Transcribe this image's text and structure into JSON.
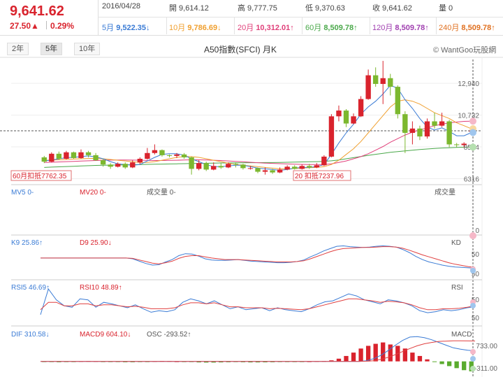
{
  "quote": {
    "last": "9,641.62",
    "change": "27.50▲",
    "change_pct": "0.29%",
    "date": "2016/04/28",
    "open": "開 9,614.12",
    "high": "高 9,777.75",
    "low": "低 9,370.63",
    "close": "收 9,641.62",
    "volume": "量 0"
  },
  "ma_bar": [
    {
      "label": "5月",
      "value": "9,522.35↓",
      "color": "#3a7bd5"
    },
    {
      "label": "10月",
      "value": "9,786.69↓",
      "color": "#f0a030"
    },
    {
      "label": "20月",
      "value": "10,312.01↑",
      "color": "#e0407a"
    },
    {
      "label": "60月",
      "value": "8,509.78↑",
      "color": "#4aa84a"
    },
    {
      "label": "120月",
      "value": "8,509.78↑",
      "color": "#a040b0"
    },
    {
      "label": "240月",
      "value": "8,509.78↑",
      "color": "#e07020"
    }
  ],
  "tabs": [
    "2年",
    "5年",
    "10年"
  ],
  "active_tab": "5年",
  "chart_title": "A50指數(SFCI) 月K",
  "brand": "© WantGoo玩股網",
  "chart_data": {
    "type": "candlestick",
    "y_ticks": [
      "12,940",
      "10,732",
      "8524",
      "6316"
    ],
    "y_tick_values": [
      12940,
      10732,
      8524,
      6316
    ],
    "candles": [
      {
        "o": 7800,
        "c": 7500,
        "h": 7900,
        "l": 7400
      },
      {
        "o": 7500,
        "c": 8050,
        "h": 8150,
        "l": 7450
      },
      {
        "o": 8050,
        "c": 7700,
        "h": 8200,
        "l": 7650
      },
      {
        "o": 7700,
        "c": 8150,
        "h": 8250,
        "l": 7650
      },
      {
        "o": 8150,
        "c": 7750,
        "h": 8200,
        "l": 7700
      },
      {
        "o": 7750,
        "c": 8150,
        "h": 8350,
        "l": 7700
      },
      {
        "o": 8150,
        "c": 7950,
        "h": 8250,
        "l": 7800
      },
      {
        "o": 7950,
        "c": 7600,
        "h": 8100,
        "l": 7550
      },
      {
        "o": 7600,
        "c": 7300,
        "h": 7700,
        "l": 7150
      },
      {
        "o": 7300,
        "c": 7150,
        "h": 7400,
        "l": 7000
      },
      {
        "o": 7150,
        "c": 7350,
        "h": 7450,
        "l": 7100
      },
      {
        "o": 7350,
        "c": 7100,
        "h": 7450,
        "l": 7000
      },
      {
        "o": 7100,
        "c": 7450,
        "h": 7600,
        "l": 7050
      },
      {
        "o": 7450,
        "c": 7700,
        "h": 7800,
        "l": 7300
      },
      {
        "o": 7700,
        "c": 8100,
        "h": 8450,
        "l": 7650
      },
      {
        "o": 8100,
        "c": 8300,
        "h": 8700,
        "l": 8000
      },
      {
        "o": 8300,
        "c": 7950,
        "h": 8350,
        "l": 7850
      },
      {
        "o": 7950,
        "c": 7900,
        "h": 8000,
        "l": 7800
      },
      {
        "o": 7900,
        "c": 8000,
        "h": 8100,
        "l": 7750
      },
      {
        "o": 8000,
        "c": 7800,
        "h": 8100,
        "l": 7700
      },
      {
        "o": 7800,
        "c": 7000,
        "h": 7850,
        "l": 6600
      },
      {
        "o": 7000,
        "c": 7400,
        "h": 7600,
        "l": 6900
      },
      {
        "o": 7400,
        "c": 6950,
        "h": 7500,
        "l": 6850
      },
      {
        "o": 6950,
        "c": 7200,
        "h": 7450,
        "l": 6900
      },
      {
        "o": 7200,
        "c": 7100,
        "h": 7400,
        "l": 7000
      },
      {
        "o": 7100,
        "c": 7350,
        "h": 7450,
        "l": 7050
      },
      {
        "o": 7350,
        "c": 7300,
        "h": 7450,
        "l": 7100
      },
      {
        "o": 7300,
        "c": 7050,
        "h": 7350,
        "l": 6950
      },
      {
        "o": 7050,
        "c": 7050,
        "h": 7200,
        "l": 6950
      },
      {
        "o": 7050,
        "c": 6800,
        "h": 7100,
        "l": 6700
      },
      {
        "o": 6800,
        "c": 6900,
        "h": 7100,
        "l": 6600
      },
      {
        "o": 6900,
        "c": 6750,
        "h": 7000,
        "l": 6650
      },
      {
        "o": 6750,
        "c": 6950,
        "h": 7100,
        "l": 6700
      },
      {
        "o": 6950,
        "c": 7150,
        "h": 7250,
        "l": 6900
      },
      {
        "o": 7150,
        "c": 7000,
        "h": 7250,
        "l": 6950
      },
      {
        "o": 7000,
        "c": 7200,
        "h": 7300,
        "l": 6950
      },
      {
        "o": 7200,
        "c": 7100,
        "h": 7350,
        "l": 7000
      },
      {
        "o": 7100,
        "c": 7250,
        "h": 7400,
        "l": 7050
      },
      {
        "o": 7250,
        "c": 7850,
        "h": 7950,
        "l": 7200
      },
      {
        "o": 7850,
        "c": 10650,
        "h": 10800,
        "l": 7800
      },
      {
        "o": 10650,
        "c": 11050,
        "h": 11400,
        "l": 10300
      },
      {
        "o": 11050,
        "c": 10150,
        "h": 11150,
        "l": 9900
      },
      {
        "o": 10150,
        "c": 10650,
        "h": 10850,
        "l": 10100
      },
      {
        "o": 10650,
        "c": 11850,
        "h": 12050,
        "l": 10600
      },
      {
        "o": 11850,
        "c": 13500,
        "h": 13900,
        "l": 11800
      },
      {
        "o": 13500,
        "c": 12900,
        "h": 14050,
        "l": 12700
      },
      {
        "o": 12900,
        "c": 13300,
        "h": 14500,
        "l": 11500
      },
      {
        "o": 13300,
        "c": 12700,
        "h": 13600,
        "l": 12100
      },
      {
        "o": 12700,
        "c": 10800,
        "h": 12800,
        "l": 10500
      },
      {
        "o": 10800,
        "c": 9500,
        "h": 11000,
        "l": 8100
      },
      {
        "o": 9500,
        "c": 9800,
        "h": 10300,
        "l": 8700
      },
      {
        "o": 9800,
        "c": 9250,
        "h": 10000,
        "l": 9000
      },
      {
        "o": 9250,
        "c": 10300,
        "h": 10500,
        "l": 9100
      },
      {
        "o": 10300,
        "c": 10000,
        "h": 10900,
        "l": 9800
      },
      {
        "o": 10000,
        "c": 10300,
        "h": 10900,
        "l": 9900
      },
      {
        "o": 10300,
        "c": 8700,
        "h": 10400,
        "l": 8500
      },
      {
        "o": 8700,
        "c": 8650,
        "h": 8800,
        "l": 8500
      },
      {
        "o": 8650,
        "c": 8750,
        "h": 8850,
        "l": 8500
      },
      {
        "o": 9614,
        "c": 9642,
        "h": 9778,
        "l": 9371
      }
    ],
    "ma5": [
      7550,
      7620,
      7700,
      7780,
      7800,
      7850,
      7900,
      7830,
      7700,
      7500,
      7350,
      7300,
      7250,
      7300,
      7550,
      7800,
      8000,
      8050,
      8050,
      7950,
      7700,
      7500,
      7300,
      7150,
      7150,
      7200,
      7250,
      7250,
      7150,
      7050,
      7000,
      6950,
      6900,
      6950,
      7050,
      7100,
      7100,
      7150,
      7300,
      8000,
      8800,
      9500,
      10100,
      10800,
      11300,
      11700,
      12200,
      12800,
      12600,
      11800,
      11200,
      10500,
      9900,
      9700,
      9850,
      9600,
      9300,
      9300,
      9522
    ],
    "ma10": [
      7600,
      7610,
      7630,
      7650,
      7680,
      7700,
      7720,
      7730,
      7700,
      7650,
      7600,
      7550,
      7500,
      7450,
      7450,
      7500,
      7600,
      7700,
      7800,
      7850,
      7850,
      7800,
      7700,
      7600,
      7500,
      7400,
      7300,
      7250,
      7200,
      7150,
      7100,
      7050,
      7000,
      7000,
      7020,
      7050,
      7080,
      7100,
      7150,
      7300,
      7600,
      8000,
      8400,
      8900,
      9500,
      10100,
      10700,
      11300,
      11700,
      11800,
      11700,
      11500,
      11200,
      10900,
      10700,
      10500,
      10200,
      10000,
      9787
    ],
    "ma20": [
      7450,
      7460,
      7480,
      7500,
      7520,
      7540,
      7560,
      7580,
      7600,
      7610,
      7620,
      7620,
      7610,
      7600,
      7590,
      7580,
      7580,
      7590,
      7600,
      7620,
      7630,
      7630,
      7620,
      7600,
      7580,
      7550,
      7520,
      7490,
      7460,
      7430,
      7400,
      7380,
      7360,
      7340,
      7320,
      7310,
      7300,
      7300,
      7300,
      7350,
      7450,
      7550,
      7700,
      7850,
      8050,
      8300,
      8550,
      8850,
      9100,
      9350,
      9550,
      9700,
      9850,
      10000,
      10100,
      10200,
      10250,
      10300,
      10312
    ],
    "ma60": [
      7100,
      7120,
      7140,
      7160,
      7180,
      7200,
      7220,
      7240,
      7250,
      7260,
      7270,
      7280,
      7290,
      7300,
      7310,
      7320,
      7330,
      7340,
      7350,
      7360,
      7370,
      7380,
      7390,
      7400,
      7410,
      7410,
      7420,
      7420,
      7430,
      7430,
      7440,
      7440,
      7450,
      7460,
      7470,
      7480,
      7490,
      7500,
      7520,
      7560,
      7620,
      7700,
      7780,
      7860,
      7940,
      8010,
      8080,
      8150,
      8200,
      8250,
      8300,
      8340,
      8380,
      8420,
      8450,
      8470,
      8490,
      8500,
      8510
    ],
    "anno_left": "60月扣抵7762.35",
    "anno_mid_prefix": "20",
    "anno_mid_suffix": "扣抵7237.96",
    "vol_labels": {
      "mv5": "MV5 0-",
      "mv20": "MV20 0-",
      "vol": "成交量 0-",
      "vol_right": "成交量"
    },
    "kd": {
      "labels": {
        "k": "K9 25.86↑",
        "d": "D9 25.90↓",
        "title": "KD"
      },
      "ticks": [
        "0",
        "50",
        "50"
      ],
      "k": [
        52,
        52,
        52,
        52,
        52,
        52,
        52,
        52,
        52,
        52,
        52,
        52,
        52,
        52,
        50,
        44,
        38,
        34,
        35,
        42,
        48,
        58,
        63,
        62,
        57,
        50,
        47,
        46,
        46,
        47,
        48,
        46,
        44,
        43,
        42,
        41,
        40,
        40,
        41,
        43,
        47,
        55,
        62,
        70,
        76,
        82,
        83,
        81,
        80,
        79,
        80,
        82,
        83,
        82,
        80,
        74,
        66,
        56,
        48,
        42,
        38,
        34,
        31,
        29,
        28,
        27,
        26
      ],
      "d": [
        52,
        52,
        52,
        52,
        52,
        52,
        52,
        52,
        52,
        52,
        52,
        52,
        52,
        52,
        51,
        47,
        43,
        39,
        37,
        40,
        44,
        51,
        56,
        58,
        58,
        55,
        52,
        50,
        48,
        48,
        48,
        47,
        46,
        45,
        44,
        43,
        42,
        42,
        42,
        43,
        45,
        50,
        56,
        62,
        68,
        73,
        76,
        77,
        78,
        79,
        79,
        80,
        81,
        81,
        80,
        77,
        72,
        66,
        60,
        55,
        50,
        45,
        40,
        36,
        33,
        30,
        28
      ]
    },
    "rsi": {
      "labels": {
        "r5": "RSI5 46.69↑",
        "r10": "RSI10 48.89↑",
        "title": "RSI"
      },
      "ticks": [
        "50",
        "50"
      ],
      "rsi5": [
        30,
        82,
        60,
        48,
        45,
        62,
        60,
        45,
        55,
        52,
        48,
        44,
        50,
        42,
        35,
        38,
        36,
        40,
        55,
        62,
        58,
        52,
        58,
        50,
        42,
        46,
        40,
        42,
        44,
        38,
        44,
        40,
        38,
        36,
        42,
        50,
        56,
        58,
        65,
        72,
        68,
        60,
        56,
        52,
        60,
        58,
        54,
        48,
        38,
        34,
        36,
        40,
        38,
        40,
        44,
        46
      ],
      "rsi10": [
        40,
        55,
        55,
        48,
        48,
        52,
        52,
        48,
        50,
        50,
        48,
        46,
        47,
        45,
        42,
        42,
        42,
        44,
        50,
        54,
        54,
        52,
        54,
        50,
        46,
        46,
        44,
        44,
        44,
        42,
        43,
        42,
        41,
        40,
        42,
        46,
        50,
        54,
        58,
        62,
        62,
        60,
        58,
        55,
        57,
        56,
        54,
        50,
        44,
        40,
        40,
        42,
        42,
        43,
        45,
        48
      ]
    },
    "macd": {
      "labels": {
        "dif": "DIF 310.58↓",
        "dea": "MACD9 604.10↓",
        "osc": "OSC -293.52↑",
        "title": "MACD"
      },
      "ticks": [
        "733.00",
        "-311.00"
      ],
      "dif": [
        0,
        0,
        0,
        0,
        0,
        0,
        0,
        0,
        0,
        0,
        0,
        0,
        0,
        0,
        0,
        0,
        0,
        0,
        0,
        0,
        0,
        0,
        0,
        0,
        0,
        0,
        0,
        0,
        0,
        0,
        0,
        0,
        0,
        0,
        0,
        0,
        0,
        0,
        0,
        0,
        0,
        0,
        0,
        0,
        0,
        20,
        80,
        180,
        320,
        480,
        620,
        720,
        733,
        700,
        640,
        560,
        480,
        400,
        360,
        330,
        311
      ],
      "dea": [
        0,
        0,
        0,
        0,
        0,
        0,
        0,
        0,
        0,
        0,
        0,
        0,
        0,
        0,
        0,
        0,
        0,
        0,
        0,
        0,
        0,
        0,
        0,
        0,
        0,
        0,
        0,
        0,
        0,
        0,
        0,
        0,
        0,
        0,
        0,
        0,
        0,
        0,
        0,
        0,
        0,
        0,
        0,
        0,
        0,
        5,
        20,
        60,
        120,
        200,
        290,
        380,
        460,
        520,
        560,
        590,
        600,
        610,
        610,
        605,
        604
      ],
      "osc": [
        -10,
        -20,
        -25,
        -20,
        -10,
        5,
        10,
        5,
        -5,
        -15,
        -20,
        -25,
        -25,
        -20,
        -10,
        5,
        12,
        10,
        0,
        -10,
        -20,
        -30,
        -35,
        -35,
        -30,
        -25,
        -20,
        -25,
        -30,
        -30,
        -28,
        -25,
        -20,
        -15,
        -10,
        -5,
        0,
        5,
        10,
        30,
        80,
        160,
        260,
        380,
        460,
        520,
        560,
        500,
        460,
        380,
        260,
        160,
        60,
        -20,
        -80,
        -140,
        -200,
        -260,
        -294
      ]
    }
  }
}
